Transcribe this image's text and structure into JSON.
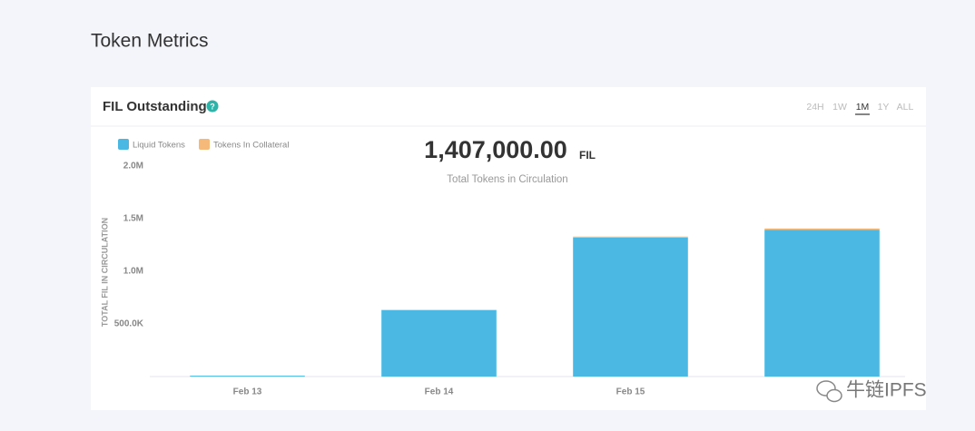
{
  "page": {
    "title": "Token Metrics"
  },
  "card": {
    "title": "FIL Outstanding",
    "help": "?",
    "ranges": [
      {
        "label": "24H"
      },
      {
        "label": "1W"
      },
      {
        "label": "1M",
        "selected": true
      },
      {
        "label": "1Y"
      },
      {
        "label": "ALL"
      }
    ],
    "headline": {
      "value": "1,407,000.00",
      "unit": "FIL",
      "caption": "Total Tokens in Circulation"
    }
  },
  "watermark": "牛链IPFS",
  "chart_data": {
    "type": "bar",
    "stacked": true,
    "y_label": "TOTAL FIL IN CIRCULATION",
    "categories": [
      "Feb 13",
      "Feb 14",
      "Feb 15",
      null
    ],
    "series": [
      {
        "name": "Liquid Tokens",
        "color": "#4ab8e2",
        "values": [
          8000,
          630000,
          1320000,
          1395000
        ]
      },
      {
        "name": "Tokens In Collateral",
        "color": "#f5b97a",
        "values": [
          0,
          5000,
          10000,
          12000
        ]
      }
    ],
    "ylim": [
      0,
      2000000
    ],
    "yticks": [
      {
        "value": 500000,
        "label": "500.0K"
      },
      {
        "value": 1000000,
        "label": "1.0M"
      },
      {
        "value": 1500000,
        "label": "1.5M"
      },
      {
        "value": 2000000,
        "label": "2.0M"
      }
    ],
    "grid": false,
    "legend": "top-left"
  }
}
